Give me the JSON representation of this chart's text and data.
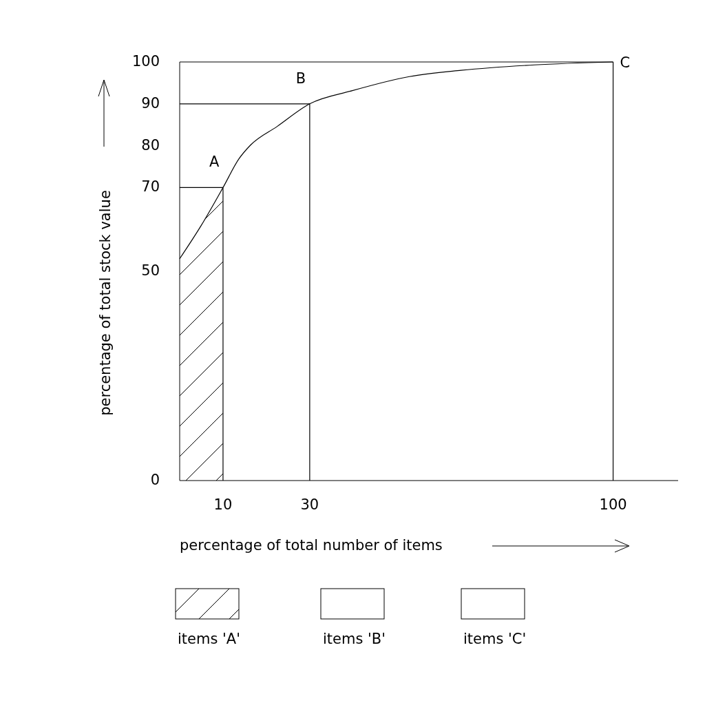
{
  "chart_data": {
    "type": "line",
    "xlabel": "percentage of total number of items",
    "ylabel": "percentage of total stock value",
    "xlim": [
      0,
      115
    ],
    "ylim": [
      0,
      100
    ],
    "xticks": [
      10,
      30,
      100
    ],
    "yticks": [
      0,
      50,
      70,
      80,
      90,
      100
    ],
    "grid": false,
    "legend": "bottom",
    "marker": "none",
    "series": [
      {
        "name": "items 'A'",
        "type": "area",
        "color": "#000000",
        "x": [
          0,
          5,
          10
        ],
        "values": [
          53,
          61,
          70
        ]
      },
      {
        "color": "#000000",
        "x": [
          0,
          5,
          10,
          13.7,
          16.3,
          22.5,
          30,
          39.7,
          53,
          64.9,
          81.9,
          100
        ],
        "values": [
          53,
          61,
          70,
          76.9,
          80.1,
          84.6,
          90,
          93.1,
          96.5,
          98,
          99.3,
          100
        ]
      },
      {
        "color": "#000000",
        "x": [
          10,
          10
        ],
        "values": [
          0,
          70
        ]
      },
      {
        "color": "#000000",
        "x": [
          30,
          30
        ],
        "values": [
          0,
          90
        ]
      },
      {
        "color": "#000000",
        "x": [
          100,
          100
        ],
        "values": [
          0,
          100
        ]
      },
      {
        "color": "#000000",
        "x": [
          0,
          10
        ],
        "values": [
          70,
          70
        ]
      },
      {
        "color": "#000000",
        "x": [
          0,
          30
        ],
        "values": [
          90,
          90
        ]
      },
      {
        "color": "#000000",
        "x": [
          0,
          100
        ],
        "values": [
          100,
          100
        ]
      }
    ],
    "annotations": [
      {
        "text": "A",
        "x": 10,
        "y": 70
      },
      {
        "text": "B",
        "x": 30,
        "y": 90
      },
      {
        "text": "C",
        "x": 100,
        "y": 100
      },
      "items 'B'",
      "items 'C'"
    ]
  }
}
